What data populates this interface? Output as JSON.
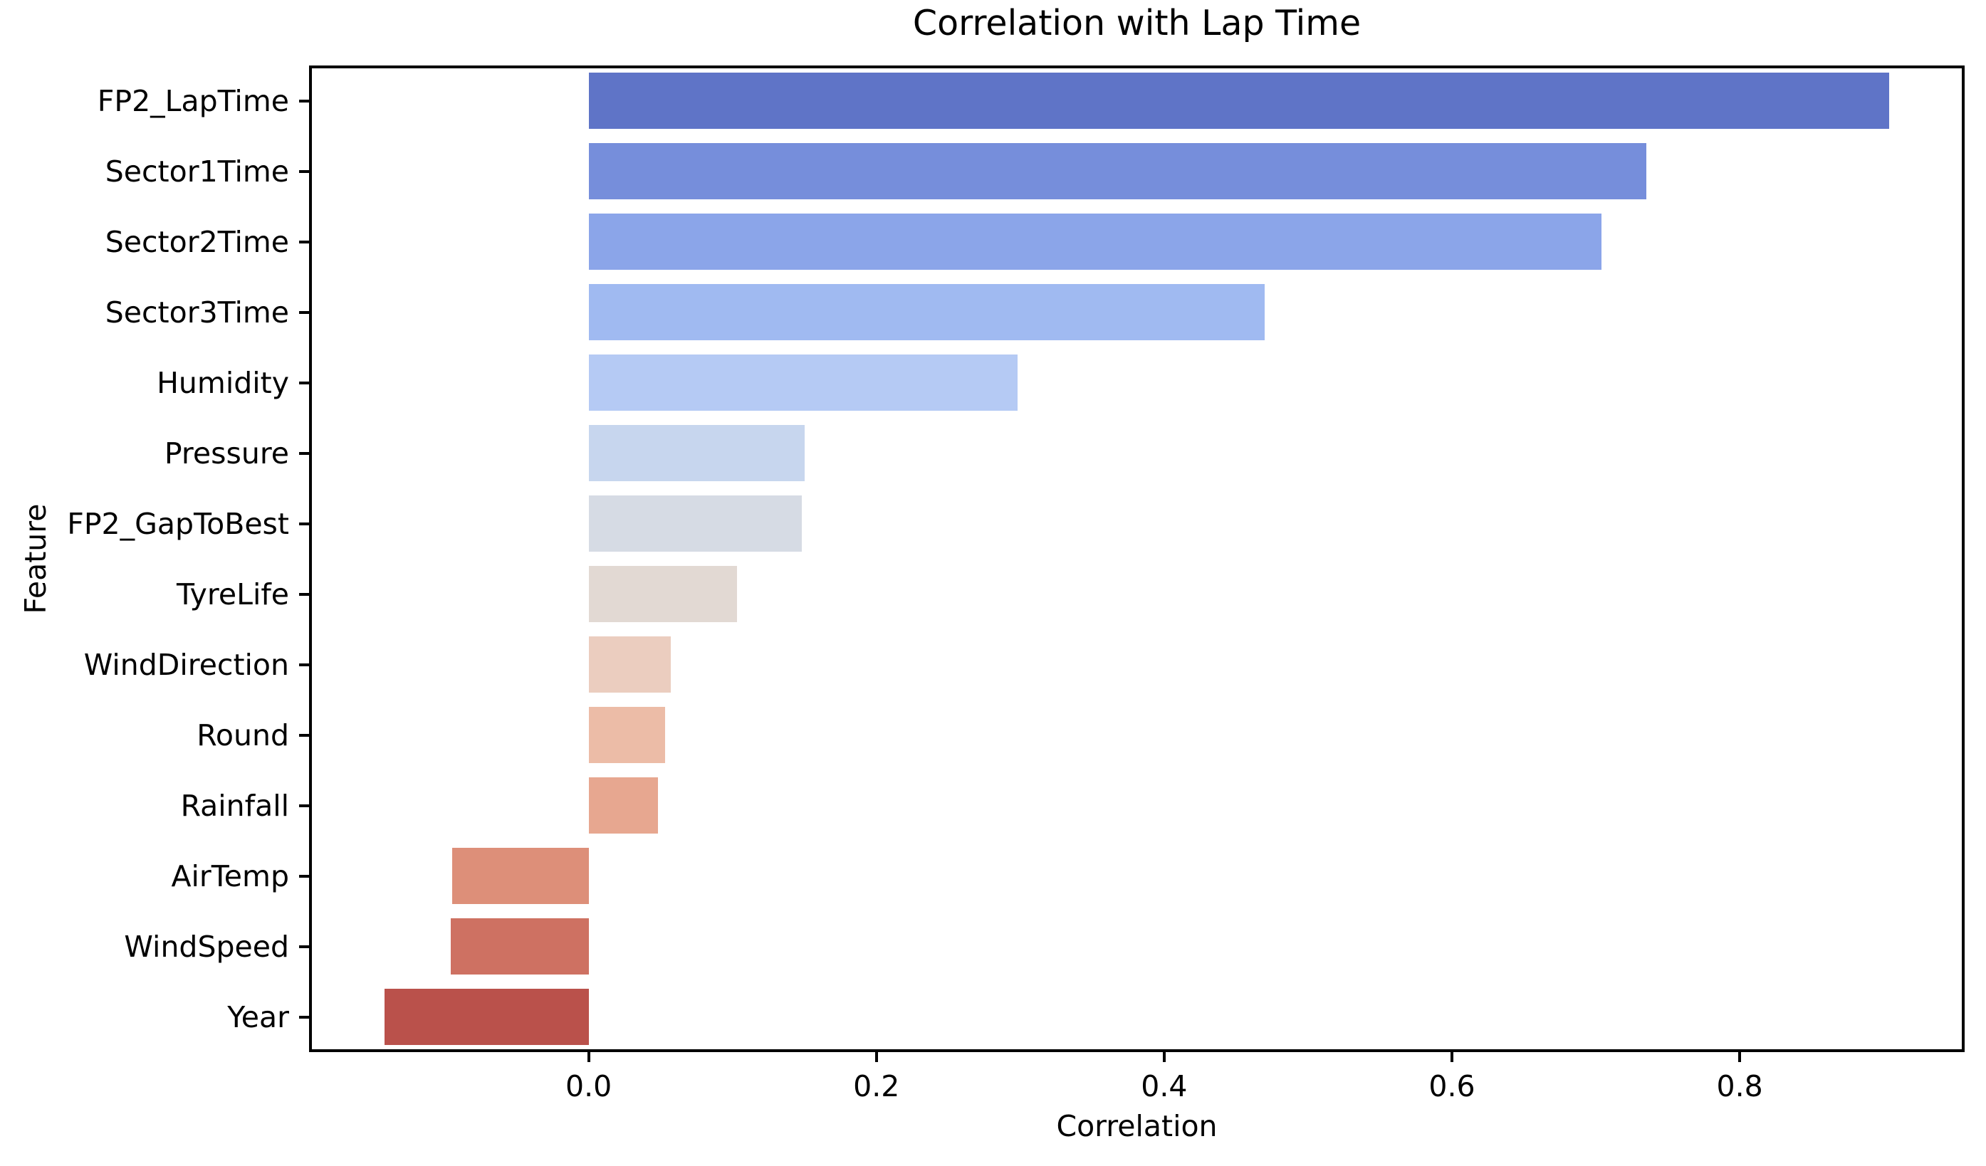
{
  "figure": {
    "background": "#ffffff",
    "spine_color": "#000000",
    "text_color": "#000000"
  },
  "chart_data": {
    "type": "bar",
    "orientation": "horizontal",
    "title": "Correlation with Lap Time",
    "xlabel": "Correlation",
    "ylabel": "Feature",
    "categories": [
      "FP2_LapTime",
      "Sector1Time",
      "Sector2Time",
      "Sector3Time",
      "Humidity",
      "Pressure",
      "FP2_GapToBest",
      "TyreLife",
      "WindDirection",
      "Round",
      "Rainfall",
      "AirTemp",
      "WindSpeed",
      "Year"
    ],
    "values": [
      0.904,
      0.735,
      0.704,
      0.47,
      0.298,
      0.15,
      0.148,
      0.103,
      0.057,
      0.053,
      0.048,
      -0.095,
      -0.096,
      -0.142
    ],
    "bar_colors": [
      "#5F74C7",
      "#768EDB",
      "#8BA5E9",
      "#A0BAF1",
      "#B5CAF4",
      "#C7D6EE",
      "#D6DBE4",
      "#E2D9D3",
      "#EBCDBF",
      "#ECBCA7",
      "#E7A790",
      "#DD8F79",
      "#CE7162",
      "#BA514B"
    ],
    "xlim": [
      -0.1943,
      0.9563
    ],
    "xticks": [
      0.0,
      0.2,
      0.4,
      0.6,
      0.8
    ],
    "xtick_labels": [
      "0.0",
      "0.2",
      "0.4",
      "0.6",
      "0.8"
    ],
    "bar_fraction": 0.8,
    "grid": false,
    "legend": null
  }
}
